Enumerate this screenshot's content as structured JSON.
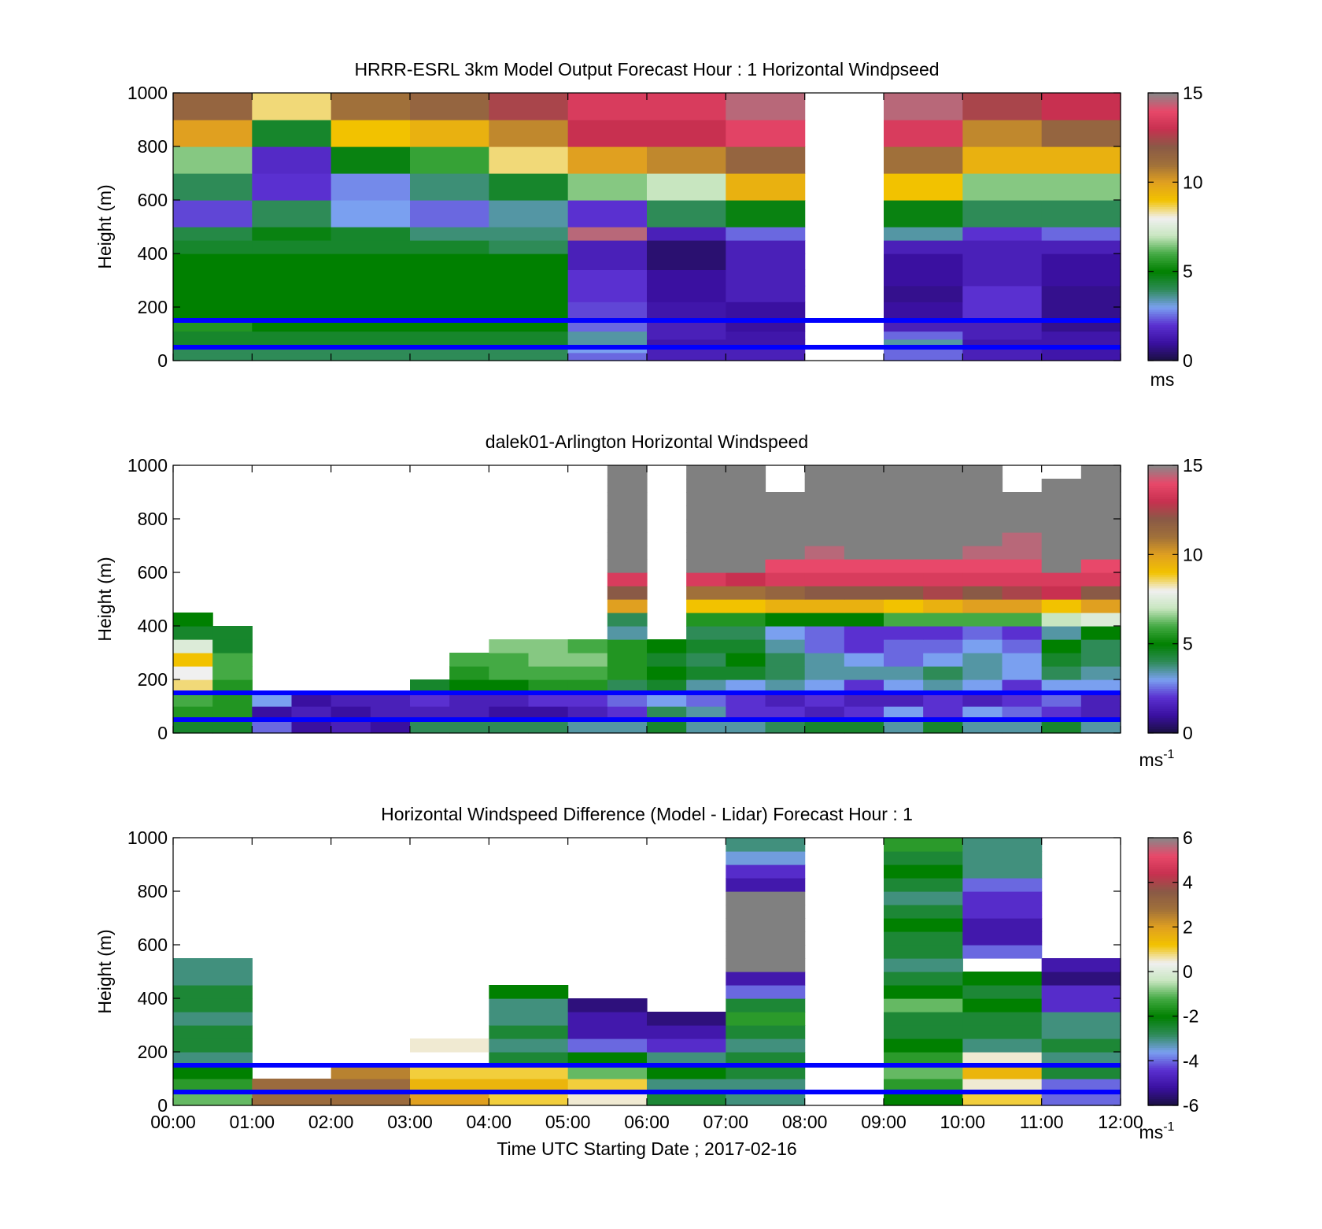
{
  "figure": {
    "xlabel": "Time UTC  Starting Date ; 2017-02-16",
    "x_ticks": [
      "00:00",
      "01:00",
      "02:00",
      "03:00",
      "04:00",
      "05:00",
      "06:00",
      "07:00",
      "08:00",
      "09:00",
      "10:00",
      "11:00",
      "12:00"
    ]
  },
  "colors": {
    "cmap": [
      "#1a1040",
      "#3a10a0",
      "#5a30d0",
      "#7aa0f0",
      "#2e8b57",
      "#008000",
      "#44aa44",
      "#c8e6c0",
      "#f0f0f0",
      "#f2c200",
      "#e0a020",
      "#a0703a",
      "#8a5a46",
      "#c83050",
      "#e8486a",
      "#888888"
    ],
    "line": "#0000ff",
    "missing": "#808080"
  },
  "chart_data": [
    {
      "type": "heatmap",
      "title": "HRRR-ESRL 3km Model Output   Forecast Hour : 1 Horizontal Windpseed",
      "ylabel": "Height (m)",
      "xlim": [
        "00:00",
        "12:00"
      ],
      "ylim": [
        0,
        1000
      ],
      "y_ticks": [
        "0",
        "200",
        "400",
        "600",
        "800",
        "1000"
      ],
      "colorbar": {
        "min": 0,
        "max": 15,
        "ticks": [
          "0",
          "5",
          "10",
          "15"
        ],
        "unit": "ms"
      },
      "hlines_m": [
        150,
        50
      ],
      "x_hours": [
        0,
        1,
        2,
        3,
        4,
        5,
        6,
        7,
        8,
        9,
        10,
        11
      ],
      "y_levels_m": [
        0,
        30,
        50,
        80,
        110,
        160,
        220,
        280,
        340,
        400,
        450,
        500,
        600,
        700,
        800,
        900,
        1000
      ],
      "values": [
        [
          4,
          4,
          4,
          4,
          4,
          2.5,
          1.5,
          1.5,
          null,
          2.5,
          1.5,
          1.2
        ],
        [
          4,
          4,
          4,
          4,
          4,
          3,
          1.5,
          1.5,
          null,
          2.5,
          1.5,
          1.2
        ],
        [
          4.5,
          4.5,
          4.5,
          4.5,
          4.5,
          3.5,
          1.2,
          1.2,
          null,
          3.5,
          1.2,
          1.2
        ],
        [
          4.5,
          4.5,
          4.5,
          4.5,
          4.5,
          3.5,
          1.5,
          1.2,
          null,
          2.5,
          1.5,
          1.2
        ],
        [
          5.5,
          5,
          5,
          5,
          5,
          2.5,
          1.5,
          1,
          null,
          1.5,
          1.5,
          0.8
        ],
        [
          5,
          5,
          5,
          5,
          5,
          2.2,
          1.2,
          1,
          null,
          1,
          2,
          0.8
        ],
        [
          5,
          5,
          5,
          5,
          5,
          2,
          1,
          1.5,
          null,
          0.8,
          2,
          0.8
        ],
        [
          5,
          5,
          5,
          5,
          5,
          2,
          1,
          1.5,
          null,
          1,
          1.5,
          1
        ],
        [
          5,
          5,
          5,
          5,
          5,
          1.5,
          0.5,
          1.5,
          null,
          1,
          1.5,
          1
        ],
        [
          4.5,
          4.5,
          4.5,
          4.5,
          4,
          1.5,
          0.5,
          1.5,
          null,
          1.5,
          1.5,
          1.5
        ],
        [
          4.2,
          4.8,
          4.5,
          3.8,
          3.8,
          14.5,
          1.5,
          2.5,
          null,
          3.5,
          2,
          2.5
        ],
        [
          2.2,
          4,
          3,
          2.5,
          3.5,
          2,
          4,
          4.8,
          null,
          4.8,
          4,
          4
        ],
        [
          4,
          2,
          2.8,
          3.8,
          4.5,
          6.5,
          7,
          9.5,
          null,
          9,
          6.5,
          6.5
        ],
        [
          6.5,
          1.8,
          4.8,
          5.8,
          8.5,
          10,
          10.5,
          11.5,
          null,
          11,
          9.5,
          9.5
        ],
        [
          10,
          4.5,
          9,
          9.5,
          10.5,
          13,
          13,
          13.8,
          null,
          13.5,
          10.5,
          11.5
        ],
        [
          11.5,
          8.5,
          11,
          11.5,
          12.5,
          13.5,
          13.5,
          14.5,
          null,
          14.5,
          12.5,
          13
        ]
      ]
    },
    {
      "type": "heatmap",
      "title": "dalek01-Arlington  Horizontal Windspeed",
      "ylabel": "Height (m)",
      "xlim": [
        "00:00",
        "12:00"
      ],
      "ylim": [
        0,
        1000
      ],
      "y_ticks": [
        "0",
        "200",
        "400",
        "600",
        "800",
        "1000"
      ],
      "colorbar": {
        "min": 0,
        "max": 15,
        "ticks": [
          "0",
          "5",
          "10",
          "15"
        ],
        "unit": "ms",
        "unit_sup": "-1"
      },
      "hlines_m": [
        150,
        50
      ],
      "x_hours": [
        0,
        0.5,
        1,
        1.5,
        2,
        2.5,
        3,
        3.5,
        4,
        4.5,
        5,
        5.5,
        6,
        6.5,
        7,
        7.5,
        8,
        8.5,
        9,
        9.5,
        10,
        10.5,
        11,
        11.5
      ],
      "y_levels_m": [
        0,
        50,
        100,
        150,
        200,
        250,
        300,
        350,
        400,
        450,
        500,
        550,
        600,
        650,
        700,
        750,
        800,
        850,
        900,
        950,
        1000
      ],
      "values": [
        [
          4.5,
          4.5,
          2.5,
          1,
          1.5,
          1,
          4,
          4,
          4,
          4,
          3.5,
          3.5,
          4.5,
          3.5,
          3.5,
          4,
          4.5,
          4.5,
          3.5,
          4.5,
          3.5,
          3.5,
          4.5,
          3.5
        ],
        [
          5.5,
          5.5,
          1,
          1.5,
          1,
          1.5,
          1.5,
          1.5,
          1,
          1,
          1.5,
          2,
          4,
          3.5,
          2,
          2,
          1.5,
          2,
          3,
          2,
          3,
          2.5,
          2,
          1.5
        ],
        [
          6,
          5.5,
          3,
          1,
          1.5,
          1.5,
          2,
          1.5,
          1.5,
          2,
          2,
          2.5,
          3,
          2.5,
          2,
          1.5,
          2,
          1.5,
          1.5,
          2,
          1.5,
          2,
          2.5,
          1.5
        ],
        [
          8.5,
          5.5,
          null,
          null,
          null,
          null,
          4.5,
          5,
          5,
          5.5,
          5.5,
          4,
          4.5,
          3.5,
          3,
          3.5,
          3,
          2,
          3,
          3.5,
          3,
          2,
          3,
          3
        ],
        [
          8,
          6,
          null,
          null,
          null,
          null,
          null,
          5.5,
          6,
          6,
          6,
          5.5,
          5,
          4.5,
          4.5,
          4,
          3.5,
          3.5,
          3.5,
          4,
          3.5,
          3,
          4,
          3.5
        ],
        [
          9,
          6,
          null,
          null,
          null,
          null,
          null,
          6,
          6,
          6.5,
          6.5,
          5.5,
          4.5,
          4,
          5,
          4,
          3.5,
          3,
          2.5,
          3,
          3.5,
          3,
          4.5,
          4
        ],
        [
          7.5,
          4.5,
          null,
          null,
          null,
          null,
          null,
          null,
          6.5,
          6.5,
          6,
          5.5,
          5,
          4.5,
          4.5,
          3.5,
          2.5,
          2,
          2.5,
          2.5,
          3,
          2.5,
          5,
          4
        ],
        [
          4.5,
          4.5,
          null,
          null,
          null,
          null,
          null,
          null,
          null,
          null,
          null,
          3.5,
          null,
          4,
          4,
          3,
          2.5,
          2,
          2,
          2,
          2.5,
          2,
          3.5,
          5
        ],
        [
          5,
          null,
          null,
          null,
          null,
          null,
          null,
          null,
          null,
          null,
          null,
          4,
          null,
          5.5,
          5.5,
          5,
          5,
          5,
          6,
          6,
          6,
          6,
          7,
          7.5
        ],
        [
          null,
          null,
          null,
          null,
          null,
          null,
          null,
          null,
          null,
          null,
          null,
          10,
          null,
          9,
          9,
          9.5,
          9.5,
          9.5,
          9,
          9.5,
          10,
          10,
          9,
          10
        ],
        [
          null,
          null,
          null,
          null,
          null,
          null,
          null,
          null,
          null,
          null,
          null,
          12,
          null,
          11,
          11,
          11.5,
          12,
          12,
          12,
          12.5,
          12,
          12.5,
          13,
          12
        ],
        [
          null,
          null,
          null,
          null,
          null,
          null,
          null,
          null,
          null,
          null,
          null,
          13.5,
          null,
          13.5,
          13,
          13.5,
          13.5,
          13.5,
          13.5,
          13.5,
          13.5,
          13.5,
          13.5,
          13.5
        ],
        [
          null,
          null,
          null,
          null,
          null,
          null,
          null,
          null,
          null,
          null,
          null,
          "M",
          null,
          "M",
          "M",
          14,
          14,
          14,
          14,
          14,
          14,
          14,
          "M",
          14
        ],
        [
          null,
          null,
          null,
          null,
          null,
          null,
          null,
          null,
          null,
          null,
          null,
          "M",
          null,
          "M",
          "M",
          "M",
          14.5,
          "M",
          "M",
          "M",
          14.5,
          14.5,
          "M",
          "M"
        ],
        [
          null,
          null,
          null,
          null,
          null,
          null,
          null,
          null,
          null,
          null,
          null,
          "M",
          null,
          "M",
          "M",
          "M",
          "M",
          "M",
          "M",
          "M",
          "M",
          14.5,
          "M",
          "M"
        ],
        [
          null,
          null,
          null,
          null,
          null,
          null,
          null,
          null,
          null,
          null,
          null,
          "M",
          null,
          "M",
          "M",
          "M",
          "M",
          "M",
          "M",
          "M",
          "M",
          "M",
          "M",
          "M"
        ],
        [
          null,
          null,
          null,
          null,
          null,
          null,
          null,
          null,
          null,
          null,
          null,
          "M",
          null,
          "M",
          "M",
          "M",
          "M",
          "M",
          "M",
          "M",
          "M",
          "M",
          "M",
          "M"
        ],
        [
          null,
          null,
          null,
          null,
          null,
          null,
          null,
          null,
          null,
          null,
          null,
          "M",
          null,
          "M",
          "M",
          "M",
          "M",
          "M",
          "M",
          "M",
          "M",
          "M",
          "M",
          "M"
        ],
        [
          null,
          null,
          null,
          null,
          null,
          null,
          null,
          null,
          null,
          null,
          null,
          "M",
          null,
          "M",
          "M",
          null,
          "M",
          "M",
          "M",
          "M",
          "M",
          null,
          "M",
          "M"
        ],
        [
          null,
          null,
          null,
          null,
          null,
          null,
          null,
          null,
          null,
          null,
          null,
          "M",
          null,
          "M",
          "M",
          null,
          "M",
          "M",
          "M",
          "M",
          "M",
          null,
          null,
          "M"
        ]
      ]
    },
    {
      "type": "heatmap",
      "title": "Horizontal Windspeed Difference (Model - Lidar) Forecast Hour : 1",
      "ylabel": "Height (m)",
      "xlim": [
        "00:00",
        "12:00"
      ],
      "ylim": [
        0,
        1000
      ],
      "y_ticks": [
        "0",
        "200",
        "400",
        "600",
        "800",
        "1000"
      ],
      "colorbar": {
        "min": -6,
        "max": 6,
        "ticks": [
          "-6",
          "-4",
          "-2",
          "0",
          "2",
          "4",
          "6"
        ],
        "unit": "ms",
        "unit_sup": "-1"
      },
      "hlines_m": [
        150,
        50
      ],
      "x_hours": [
        0,
        1,
        2,
        3,
        4,
        5,
        6,
        7,
        8,
        9,
        10,
        11
      ],
      "y_levels_m": [
        0,
        50,
        100,
        150,
        200,
        250,
        300,
        350,
        400,
        450,
        500,
        550,
        600,
        650,
        700,
        750,
        800,
        850,
        900,
        950,
        1000
      ],
      "values": [
        [
          -1,
          3,
          3,
          2,
          1,
          0.5,
          -2.5,
          -3,
          null,
          -2,
          1,
          -4
        ],
        [
          -1.5,
          3,
          3,
          1.5,
          1.5,
          1,
          -3,
          -3,
          null,
          -1.5,
          0.5,
          -4
        ],
        [
          -2,
          null,
          2.5,
          1,
          1,
          -1,
          -2,
          -2.5,
          null,
          -1,
          1.5,
          -2.5
        ],
        [
          -3,
          null,
          null,
          null,
          -2.5,
          -2,
          -3,
          -2.5,
          null,
          -1.5,
          0.5,
          -3
        ],
        [
          -2.5,
          null,
          null,
          0.5,
          -3,
          -4,
          -4.5,
          -3,
          null,
          -2,
          -3,
          -2.5
        ],
        [
          -2.5,
          null,
          null,
          null,
          -2.5,
          -5,
          -5,
          -2.5,
          null,
          -2.5,
          -2.5,
          -3
        ],
        [
          -3,
          null,
          null,
          null,
          -3,
          -5,
          -5.5,
          -1.5,
          null,
          -2.5,
          -2.5,
          -3
        ],
        [
          -2.5,
          null,
          null,
          null,
          -3,
          -5.5,
          null,
          -2.5,
          null,
          -1,
          -2,
          -4.5
        ],
        [
          -2.5,
          null,
          null,
          null,
          -2,
          null,
          null,
          -4,
          null,
          -2,
          -2.5,
          -4.5
        ],
        [
          -3,
          null,
          null,
          null,
          null,
          null,
          null,
          -5,
          null,
          -2.5,
          -2,
          -5.5
        ],
        [
          -3,
          null,
          null,
          null,
          null,
          null,
          null,
          "M",
          null,
          -3,
          null,
          -5
        ],
        [
          null,
          null,
          null,
          null,
          null,
          null,
          null,
          "M",
          null,
          -2.5,
          -4,
          null
        ],
        [
          null,
          null,
          null,
          null,
          null,
          null,
          null,
          "M",
          null,
          -2.5,
          -5,
          null
        ],
        [
          null,
          null,
          null,
          null,
          null,
          null,
          null,
          "M",
          null,
          -2,
          -5,
          null
        ],
        [
          null,
          null,
          null,
          null,
          null,
          null,
          null,
          "M",
          null,
          -2.5,
          -4.5,
          null
        ],
        [
          null,
          null,
          null,
          null,
          null,
          null,
          null,
          "M",
          null,
          -3,
          -4.5,
          null
        ],
        [
          null,
          null,
          null,
          null,
          null,
          null,
          null,
          -5,
          null,
          -2.5,
          -4,
          null
        ],
        [
          null,
          null,
          null,
          null,
          null,
          null,
          null,
          -4.5,
          null,
          -2,
          -3,
          null
        ],
        [
          null,
          null,
          null,
          null,
          null,
          null,
          null,
          -3.5,
          null,
          -2.5,
          -3,
          null
        ],
        [
          null,
          null,
          null,
          null,
          null,
          null,
          null,
          -3,
          null,
          -1.5,
          -3,
          null
        ]
      ]
    }
  ]
}
